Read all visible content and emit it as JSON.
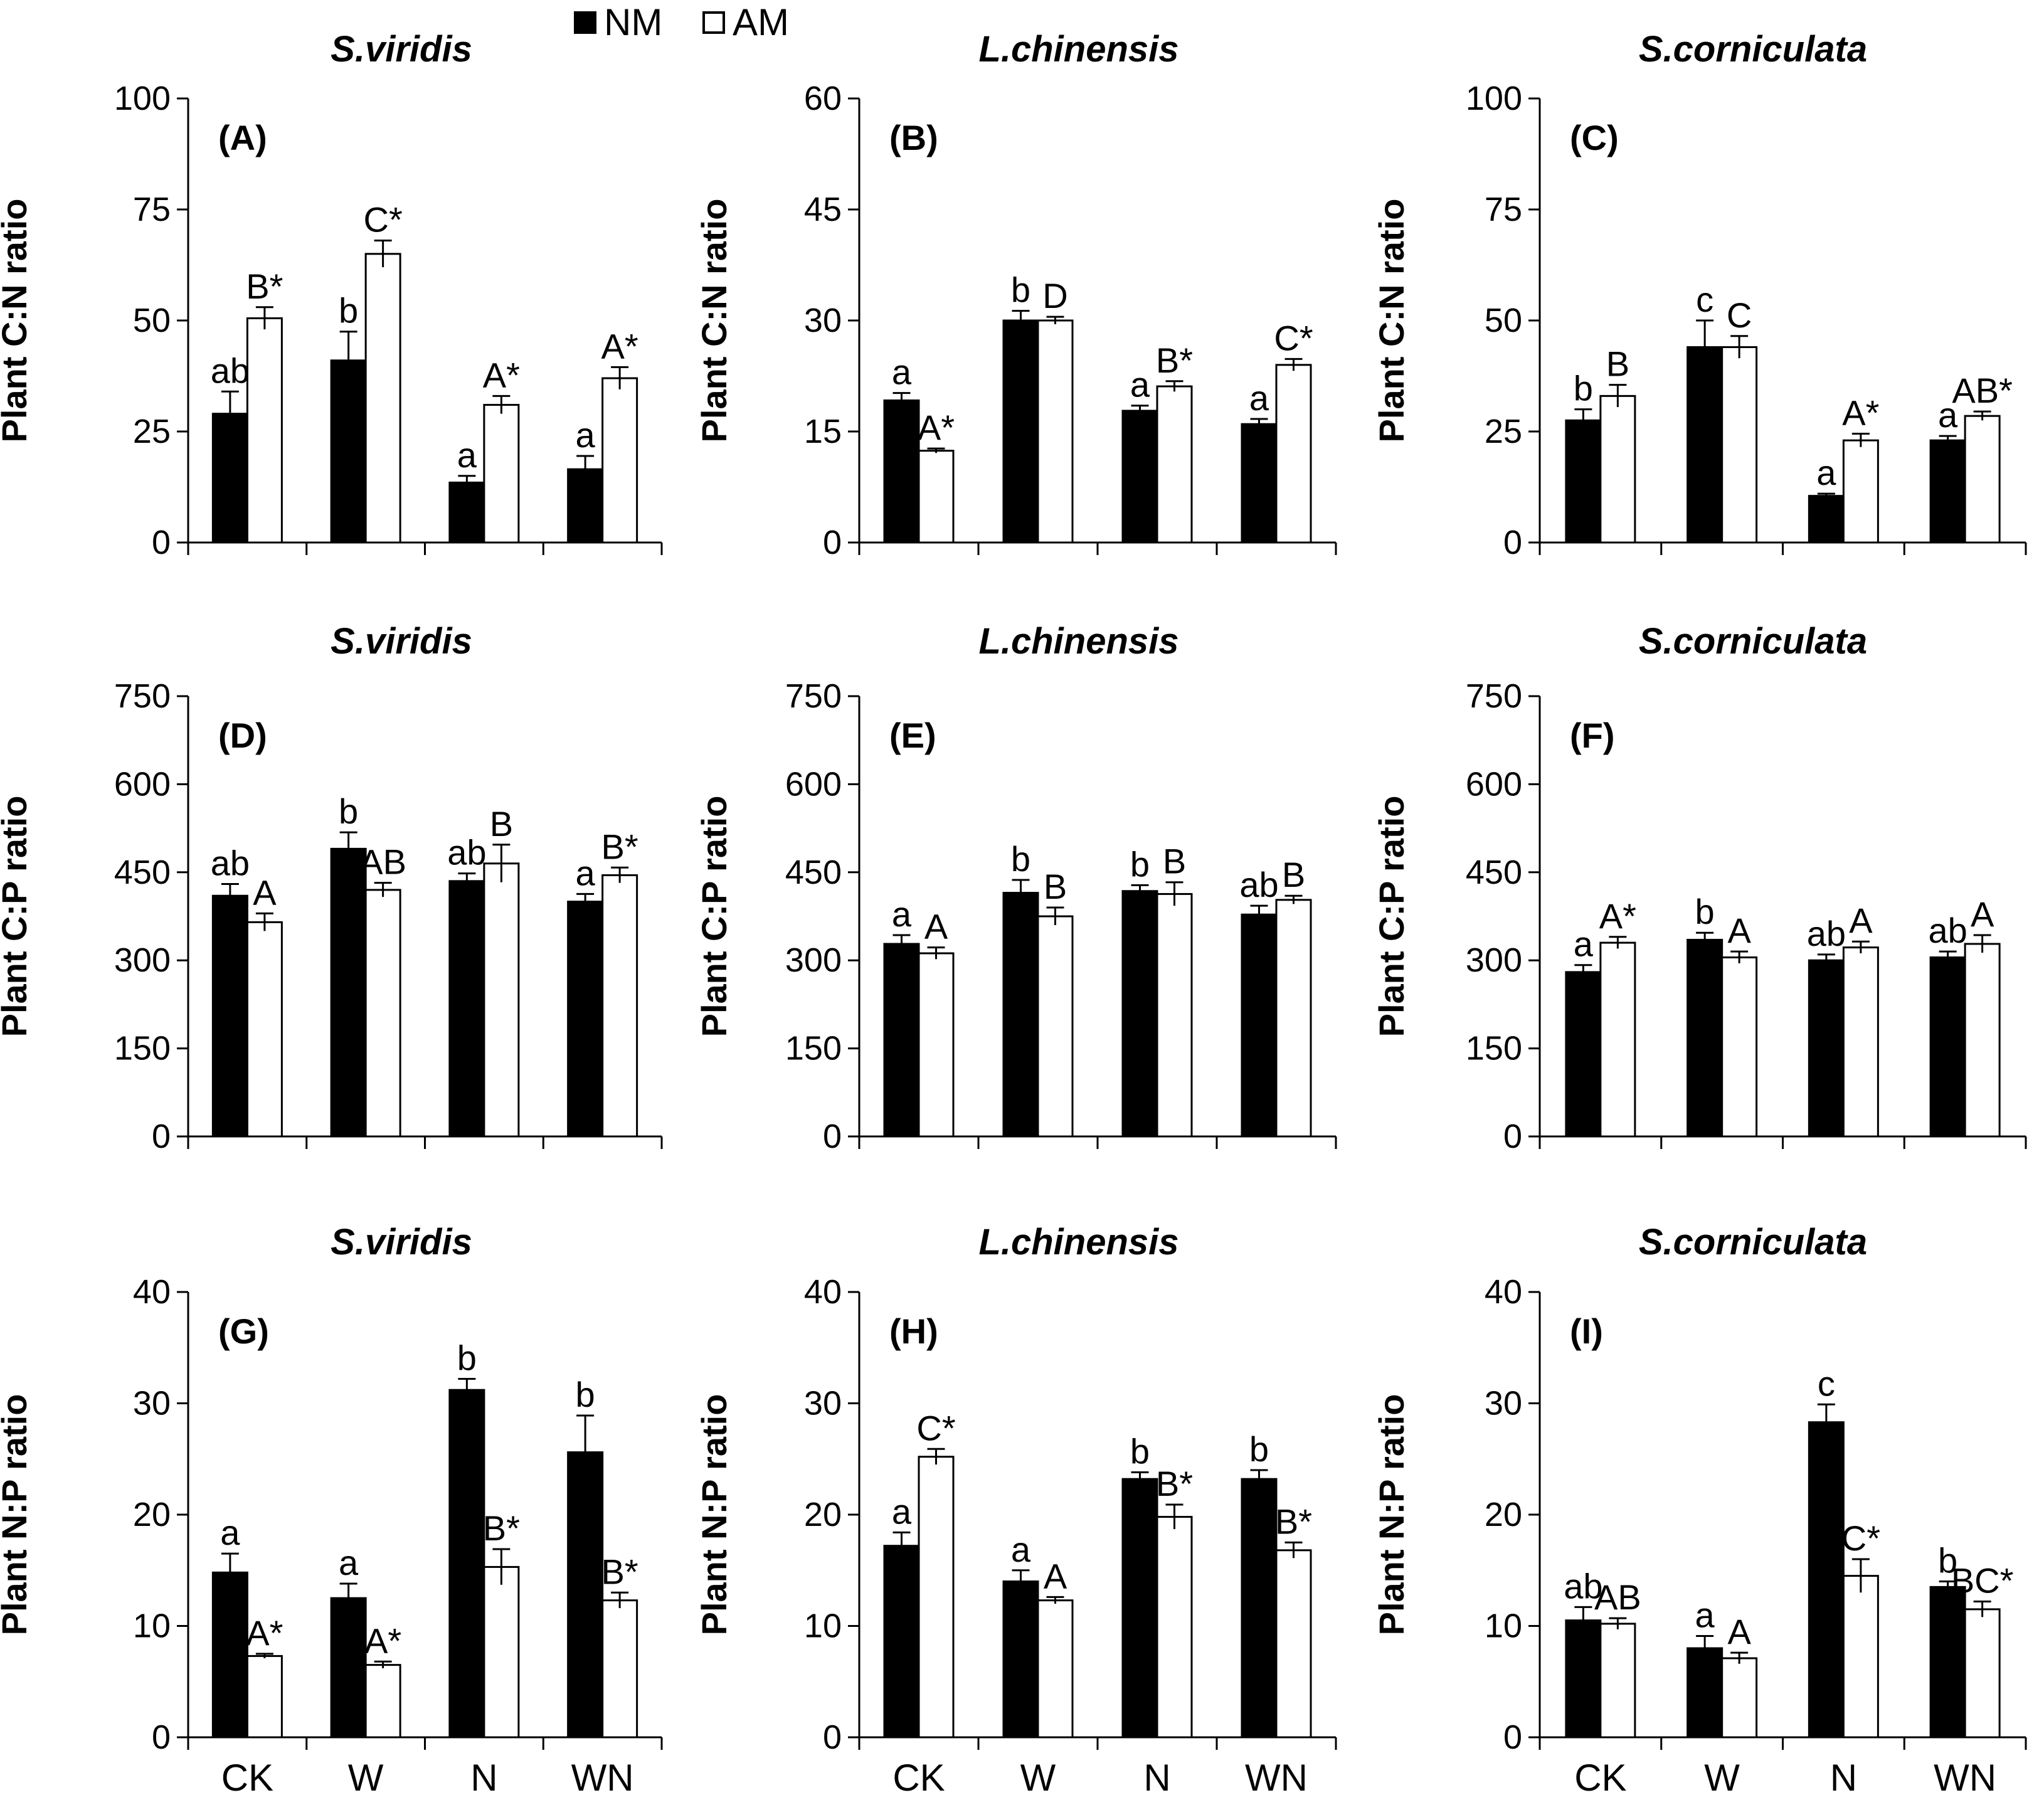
{
  "legend": {
    "items": [
      {
        "label": "NM",
        "color": "#000000"
      },
      {
        "label": "AM",
        "color": "#ffffff"
      }
    ]
  },
  "categories": [
    "CK",
    "W",
    "N",
    "WN"
  ],
  "chart_data": [
    {
      "type": "bar",
      "panel": "(A)",
      "title": "S.viridis",
      "ylabel": "Plant C:N ratio",
      "ylim": [
        0,
        100
      ],
      "yticks": [
        0,
        25,
        50,
        75,
        100
      ],
      "xlabels": false,
      "series": [
        {
          "name": "NM",
          "values": [
            29,
            41,
            13.5,
            16.5
          ],
          "errors": [
            5,
            6.5,
            1.5,
            3
          ],
          "letters": [
            "ab",
            "b",
            "a",
            "a"
          ]
        },
        {
          "name": "AM",
          "values": [
            50.5,
            65,
            31,
            37
          ],
          "errors": [
            2.5,
            3,
            2,
            2.5
          ],
          "letters": [
            "B*",
            "C*",
            "A*",
            "A*"
          ]
        }
      ]
    },
    {
      "type": "bar",
      "panel": "(B)",
      "title": "L.chinensis",
      "ylabel": "Plant C:N ratio",
      "ylim": [
        0,
        60
      ],
      "yticks": [
        0,
        15,
        30,
        45,
        60
      ],
      "xlabels": false,
      "series": [
        {
          "name": "NM",
          "values": [
            19.2,
            30,
            17.8,
            16
          ],
          "errors": [
            1,
            1.3,
            0.7,
            0.7
          ],
          "letters": [
            "a",
            "b",
            "a",
            "a"
          ]
        },
        {
          "name": "AM",
          "values": [
            12.4,
            30,
            21.1,
            24
          ],
          "errors": [
            0.3,
            0.5,
            0.7,
            0.8
          ],
          "letters": [
            "A*",
            "D",
            "B*",
            "C*"
          ]
        }
      ]
    },
    {
      "type": "bar",
      "panel": "(C)",
      "title": "S.corniculata",
      "ylabel": "Plant C:N ratio",
      "ylim": [
        0,
        100
      ],
      "yticks": [
        0,
        25,
        50,
        75,
        100
      ],
      "xlabels": false,
      "series": [
        {
          "name": "NM",
          "values": [
            27.5,
            44,
            10.5,
            23
          ],
          "errors": [
            2.5,
            6,
            0.5,
            1
          ],
          "letters": [
            "b",
            "c",
            "a",
            "a"
          ]
        },
        {
          "name": "AM",
          "values": [
            33,
            44,
            23,
            28.5
          ],
          "errors": [
            2.5,
            2.5,
            1.5,
            1
          ],
          "letters": [
            "B",
            "C",
            "A*",
            "AB*"
          ]
        }
      ]
    },
    {
      "type": "bar",
      "panel": "(D)",
      "title": "S.viridis",
      "ylabel": "Plant C:P ratio",
      "ylim": [
        0,
        750
      ],
      "yticks": [
        0,
        150,
        300,
        450,
        600,
        750
      ],
      "xlabels": false,
      "series": [
        {
          "name": "NM",
          "values": [
            410,
            490,
            435,
            400
          ],
          "errors": [
            20,
            28,
            13,
            13
          ],
          "letters": [
            "ab",
            "b",
            "ab",
            "a"
          ]
        },
        {
          "name": "AM",
          "values": [
            365,
            420,
            465,
            445
          ],
          "errors": [
            15,
            12,
            32,
            13
          ],
          "letters": [
            "A",
            "AB",
            "B",
            "B*"
          ]
        }
      ]
    },
    {
      "type": "bar",
      "panel": "(E)",
      "title": "L.chinensis",
      "ylabel": "Plant C:P ratio",
      "ylim": [
        0,
        750
      ],
      "yticks": [
        0,
        150,
        300,
        450,
        600,
        750
      ],
      "xlabels": false,
      "series": [
        {
          "name": "NM",
          "values": [
            328,
            415,
            418,
            378
          ],
          "errors": [
            15,
            22,
            10,
            15
          ],
          "letters": [
            "a",
            "b",
            "b",
            "ab"
          ]
        },
        {
          "name": "AM",
          "values": [
            312,
            375,
            413,
            403
          ],
          "errors": [
            10,
            15,
            20,
            7
          ],
          "letters": [
            "A",
            "B",
            "B",
            "B"
          ]
        }
      ]
    },
    {
      "type": "bar",
      "panel": "(F)",
      "title": "S.corniculata",
      "ylabel": "Plant C:P ratio",
      "ylim": [
        0,
        750
      ],
      "yticks": [
        0,
        150,
        300,
        450,
        600,
        750
      ],
      "xlabels": false,
      "series": [
        {
          "name": "NM",
          "values": [
            280,
            335,
            300,
            305
          ],
          "errors": [
            12,
            12,
            10,
            10
          ],
          "letters": [
            "a",
            "b",
            "ab",
            "ab"
          ]
        },
        {
          "name": "AM",
          "values": [
            330,
            305,
            322,
            328
          ],
          "errors": [
            10,
            10,
            10,
            15
          ],
          "letters": [
            "A*",
            "A",
            "A",
            "A"
          ]
        }
      ]
    },
    {
      "type": "bar",
      "panel": "(G)",
      "title": "S.viridis",
      "ylabel": "Plant N:P ratio",
      "ylim": [
        0,
        40
      ],
      "yticks": [
        0,
        10,
        20,
        30,
        40
      ],
      "xlabels": true,
      "series": [
        {
          "name": "NM",
          "values": [
            14.8,
            12.5,
            31.2,
            25.6
          ],
          "errors": [
            1.7,
            1.3,
            1,
            3.3
          ],
          "letters": [
            "a",
            "a",
            "b",
            "b"
          ]
        },
        {
          "name": "AM",
          "values": [
            7.3,
            6.5,
            15.3,
            12.3
          ],
          "errors": [
            0.2,
            0.3,
            1.6,
            0.7
          ],
          "letters": [
            "A*",
            "A*",
            "B*",
            "B*"
          ]
        }
      ]
    },
    {
      "type": "bar",
      "panel": "(H)",
      "title": "L.chinensis",
      "ylabel": "Plant N:P ratio",
      "ylim": [
        0,
        40
      ],
      "yticks": [
        0,
        10,
        20,
        30,
        40
      ],
      "xlabels": true,
      "series": [
        {
          "name": "NM",
          "values": [
            17.2,
            14,
            23.2,
            23.2
          ],
          "errors": [
            1.2,
            1,
            0.6,
            0.8
          ],
          "letters": [
            "a",
            "a",
            "b",
            "b"
          ]
        },
        {
          "name": "AM",
          "values": [
            25.2,
            12.3,
            19.8,
            16.8
          ],
          "errors": [
            0.7,
            0.3,
            1.1,
            0.7
          ],
          "letters": [
            "C*",
            "A",
            "B*",
            "B*"
          ]
        }
      ]
    },
    {
      "type": "bar",
      "panel": "(I)",
      "title": "S.corniculata",
      "ylabel": "Plant N:P ratio",
      "ylim": [
        0,
        40
      ],
      "yticks": [
        0,
        10,
        20,
        30,
        40
      ],
      "xlabels": true,
      "series": [
        {
          "name": "NM",
          "values": [
            10.5,
            8,
            28.3,
            13.5
          ],
          "errors": [
            1.2,
            1.1,
            1.6,
            0.5
          ],
          "letters": [
            "ab",
            "a",
            "c",
            "b"
          ]
        },
        {
          "name": "AM",
          "values": [
            10.2,
            7.1,
            14.5,
            11.5
          ],
          "errors": [
            0.5,
            0.5,
            1.5,
            0.7
          ],
          "letters": [
            "AB",
            "A",
            "C*",
            "BC*"
          ]
        }
      ]
    }
  ]
}
